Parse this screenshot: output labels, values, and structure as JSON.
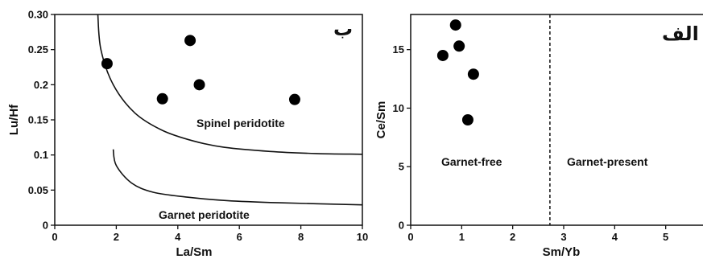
{
  "chart_data": [
    {
      "type": "scatter",
      "panel_label": "ب",
      "xlabel": "La/Sm",
      "ylabel": "Lu/Hf",
      "xlim": [
        0,
        10
      ],
      "ylim": [
        0,
        0.3
      ],
      "xticks": [
        "0",
        "2",
        "4",
        "6",
        "8",
        "10"
      ],
      "yticks": [
        "0",
        "0.05",
        "0.1",
        "0.15",
        "0.2",
        "0.25",
        "0.30"
      ],
      "points": [
        {
          "x": 1.7,
          "y": 0.23
        },
        {
          "x": 3.5,
          "y": 0.18
        },
        {
          "x": 4.4,
          "y": 0.263
        },
        {
          "x": 4.7,
          "y": 0.2
        },
        {
          "x": 7.8,
          "y": 0.179
        }
      ],
      "annotations": [
        "Spinel peridotite",
        "Garnet peridotite"
      ],
      "curves": [
        {
          "points": [
            [
              1.4,
              0.3
            ],
            [
              1.5,
              0.25
            ],
            [
              1.9,
              0.2
            ],
            [
              2.6,
              0.16
            ],
            [
              3.5,
              0.135
            ],
            [
              4.5,
              0.12
            ],
            [
              5.5,
              0.111
            ],
            [
              7,
              0.105
            ],
            [
              8.5,
              0.102
            ],
            [
              10,
              0.101
            ]
          ]
        },
        {
          "points": [
            [
              1.9,
              0.108
            ],
            [
              2.0,
              0.085
            ],
            [
              2.5,
              0.06
            ],
            [
              3.2,
              0.047
            ],
            [
              4.3,
              0.04
            ],
            [
              5.6,
              0.035
            ],
            [
              7.3,
              0.032
            ],
            [
              10,
              0.029
            ]
          ]
        }
      ]
    },
    {
      "type": "scatter",
      "panel_label": "الف",
      "xlabel": "Sm/Yb",
      "ylabel": "Ce/Sm",
      "xlim": [
        0,
        6
      ],
      "ylim": [
        0,
        18
      ],
      "xticks": [
        "0",
        "1",
        "2",
        "3",
        "4",
        "5"
      ],
      "yticks": [
        "0",
        "5",
        "10",
        "15"
      ],
      "points": [
        {
          "x": 0.63,
          "y": 14.5
        },
        {
          "x": 0.88,
          "y": 17.1
        },
        {
          "x": 0.95,
          "y": 15.3
        },
        {
          "x": 1.12,
          "y": 9.0
        },
        {
          "x": 1.23,
          "y": 12.9
        }
      ],
      "divider_x": 2.73,
      "annotations": [
        "Garnet-free",
        "Garnet-present"
      ]
    }
  ]
}
